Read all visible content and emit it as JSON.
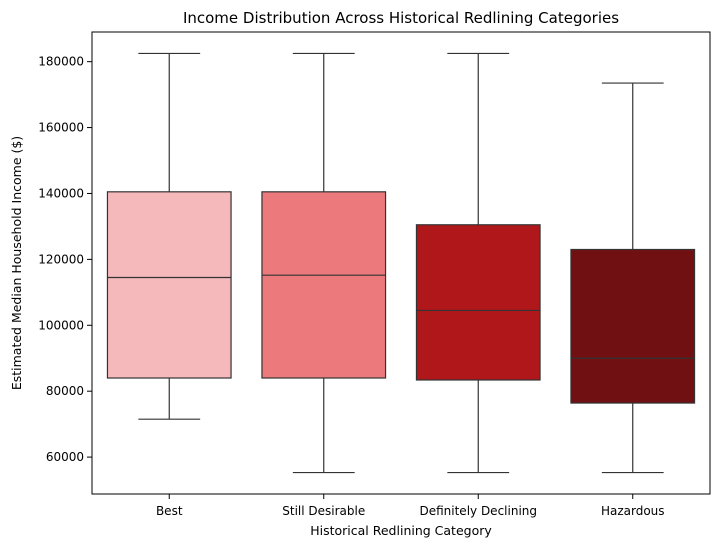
{
  "chart_data": {
    "type": "box",
    "title": "Income Distribution Across Historical Redlining Categories",
    "xlabel": "Historical Redlining Category",
    "ylabel": "Estimated Median Household Income ($)",
    "categories": [
      "Best",
      "Still Desirable",
      "Definitely Declining",
      "Hazardous"
    ],
    "boxes": [
      {
        "category": "Best",
        "whisker_low": 71500,
        "q1": 84000,
        "median": 114500,
        "q3": 140500,
        "whisker_high": 182500,
        "color": "#f6b9bb"
      },
      {
        "category": "Still Desirable",
        "whisker_low": 55300,
        "q1": 84000,
        "median": 115200,
        "q3": 140500,
        "whisker_high": 182500,
        "color": "#ec7a7c"
      },
      {
        "category": "Definitely Declining",
        "whisker_low": 55300,
        "q1": 83400,
        "median": 104500,
        "q3": 130500,
        "whisker_high": 182500,
        "color": "#b0171b"
      },
      {
        "category": "Hazardous",
        "whisker_low": 55300,
        "q1": 76400,
        "median": 90000,
        "q3": 123000,
        "whisker_high": 173500,
        "color": "#711012"
      }
    ],
    "y_ticks": [
      60000,
      80000,
      100000,
      120000,
      140000,
      160000,
      180000
    ],
    "y_tick_labels": [
      "60000",
      "80000",
      "100000",
      "120000",
      "140000",
      "160000",
      "180000"
    ],
    "ylim": [
      48800,
      189000
    ],
    "grid": false,
    "legend": "none",
    "line_color": "#333333"
  }
}
